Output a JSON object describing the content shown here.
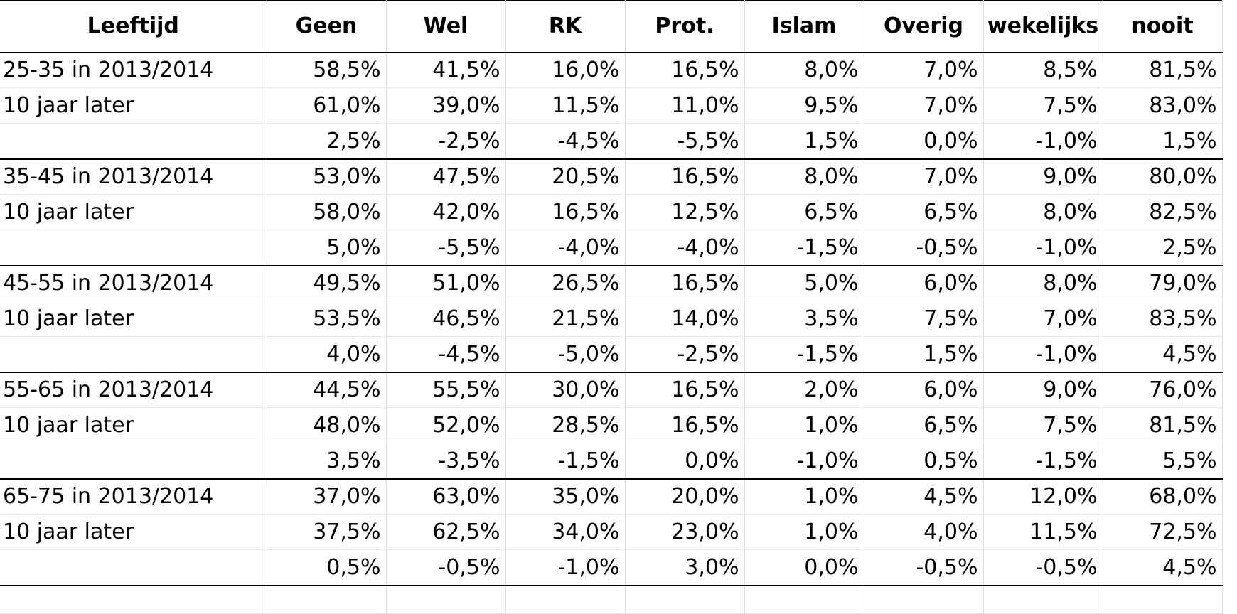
{
  "headers": [
    "Leeftijd",
    "Geen",
    "Wel",
    "RK",
    "Prot.",
    "Islam",
    "Overig",
    "wekelijks",
    "nooit"
  ],
  "rows": [
    {
      "label": "25-35 in 2013/2014",
      "values": [
        "58,5%",
        "41,5%",
        "16,0%",
        "16,5%",
        "8,0%",
        "7,0%",
        "8,5%",
        "81,5%"
      ]
    },
    {
      "label": "10 jaar later",
      "values": [
        "61,0%",
        "39,0%",
        "11,5%",
        "11,0%",
        "9,5%",
        "7,0%",
        "7,5%",
        "83,0%"
      ]
    },
    {
      "label": "",
      "values": [
        "2,5%",
        "-2,5%",
        "-4,5%",
        "-5,5%",
        "1,5%",
        "0,0%",
        "-1,0%",
        "1,5%"
      ]
    },
    {
      "label": "35-45 in 2013/2014",
      "values": [
        "53,0%",
        "47,5%",
        "20,5%",
        "16,5%",
        "8,0%",
        "7,0%",
        "9,0%",
        "80,0%"
      ]
    },
    {
      "label": "10 jaar later",
      "values": [
        "58,0%",
        "42,0%",
        "16,5%",
        "12,5%",
        "6,5%",
        "6,5%",
        "8,0%",
        "82,5%"
      ]
    },
    {
      "label": "",
      "values": [
        "5,0%",
        "-5,5%",
        "-4,0%",
        "-4,0%",
        "-1,5%",
        "-0,5%",
        "-1,0%",
        "2,5%"
      ]
    },
    {
      "label": "45-55 in 2013/2014",
      "values": [
        "49,5%",
        "51,0%",
        "26,5%",
        "16,5%",
        "5,0%",
        "6,0%",
        "8,0%",
        "79,0%"
      ]
    },
    {
      "label": "10 jaar later",
      "values": [
        "53,5%",
        "46,5%",
        "21,5%",
        "14,0%",
        "3,5%",
        "7,5%",
        "7,0%",
        "83,5%"
      ]
    },
    {
      "label": "",
      "values": [
        "4,0%",
        "-4,5%",
        "-5,0%",
        "-2,5%",
        "-1,5%",
        "1,5%",
        "-1,0%",
        "4,5%"
      ]
    },
    {
      "label": "55-65 in 2013/2014",
      "values": [
        "44,5%",
        "55,5%",
        "30,0%",
        "16,5%",
        "2,0%",
        "6,0%",
        "9,0%",
        "76,0%"
      ]
    },
    {
      "label": "10 jaar later",
      "values": [
        "48,0%",
        "52,0%",
        "28,5%",
        "16,5%",
        "1,0%",
        "6,5%",
        "7,5%",
        "81,5%"
      ]
    },
    {
      "label": "",
      "values": [
        "3,5%",
        "-3,5%",
        "-1,5%",
        "0,0%",
        "-1,0%",
        "0,5%",
        "-1,5%",
        "5,5%"
      ]
    },
    {
      "label": "65-75 in 2013/2014",
      "values": [
        "37,0%",
        "63,0%",
        "35,0%",
        "20,0%",
        "1,0%",
        "4,5%",
        "12,0%",
        "68,0%"
      ]
    },
    {
      "label": "10 jaar later",
      "values": [
        "37,5%",
        "62,5%",
        "34,0%",
        "23,0%",
        "1,0%",
        "4,0%",
        "11,5%",
        "72,5%"
      ]
    },
    {
      "label": "",
      "values": [
        "0,5%",
        "-0,5%",
        "-1,0%",
        "3,0%",
        "0,0%",
        "-0,5%",
        "-0,5%",
        "4,5%"
      ]
    }
  ]
}
